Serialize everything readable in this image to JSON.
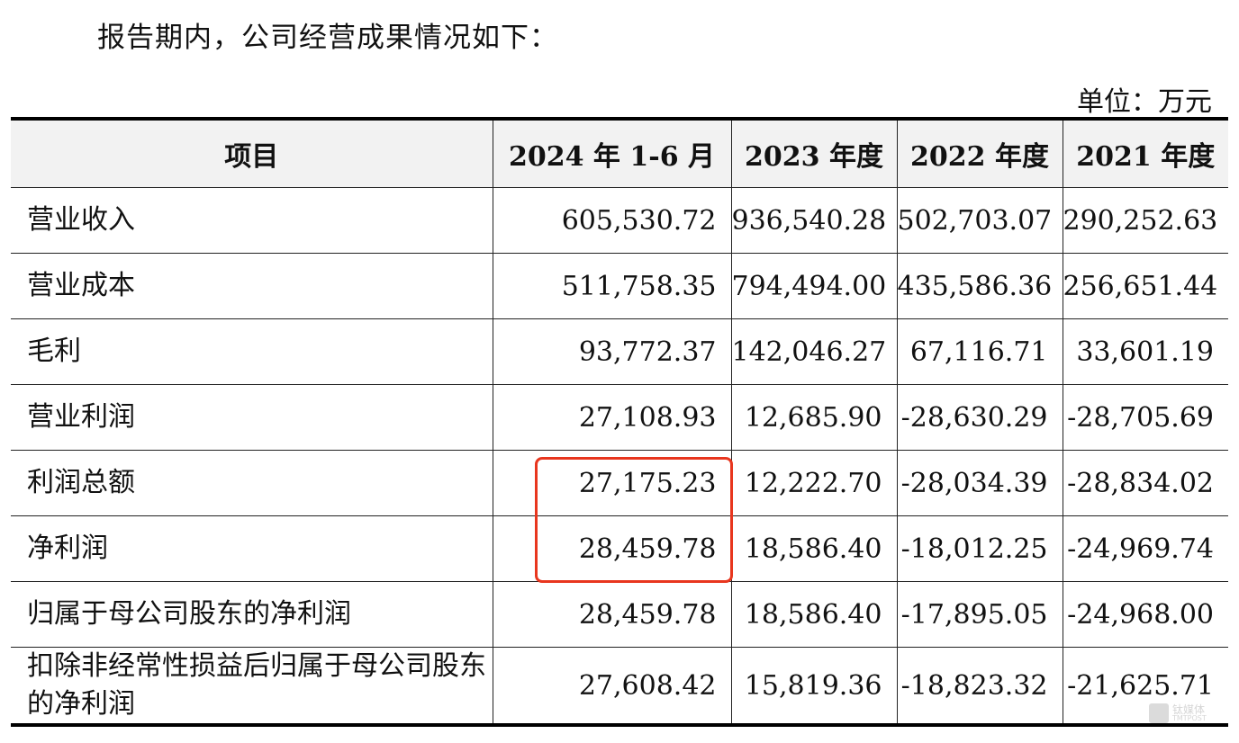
{
  "intro": "报告期内，公司经营成果情况如下：",
  "unit": "单位：万元",
  "table": {
    "headers": [
      "项目",
      "2024 年 1-6 月",
      "2023 年度",
      "2022 年度",
      "2021 年度"
    ],
    "rows": [
      {
        "label": "营业收入",
        "values": [
          "605,530.72",
          "936,540.28",
          "502,703.07",
          "290,252.63"
        ]
      },
      {
        "label": "营业成本",
        "values": [
          "511,758.35",
          "794,494.00",
          "435,586.36",
          "256,651.44"
        ]
      },
      {
        "label": "毛利",
        "values": [
          "93,772.37",
          "142,046.27",
          "67,116.71",
          "33,601.19"
        ]
      },
      {
        "label": "营业利润",
        "values": [
          "27,108.93",
          "12,685.90",
          "-28,630.29",
          "-28,705.69"
        ]
      },
      {
        "label": "利润总额",
        "values": [
          "27,175.23",
          "12,222.70",
          "-28,034.39",
          "-28,834.02"
        ]
      },
      {
        "label": "净利润",
        "values": [
          "28,459.78",
          "18,586.40",
          "-18,012.25",
          "-24,969.74"
        ]
      },
      {
        "label": "归属于母公司股东的净利润",
        "values": [
          "28,459.78",
          "18,586.40",
          "-17,895.05",
          "-24,968.00"
        ]
      },
      {
        "label": "扣除非经常性损益后归属于母公司股东的净利润",
        "values": [
          "27,608.42",
          "15,819.36",
          "-18,823.32",
          "-21,625.71"
        ]
      }
    ]
  },
  "highlight_color": "#e8361e",
  "watermark": {
    "text": "钛媒体",
    "sub": "TMTPOST"
  }
}
